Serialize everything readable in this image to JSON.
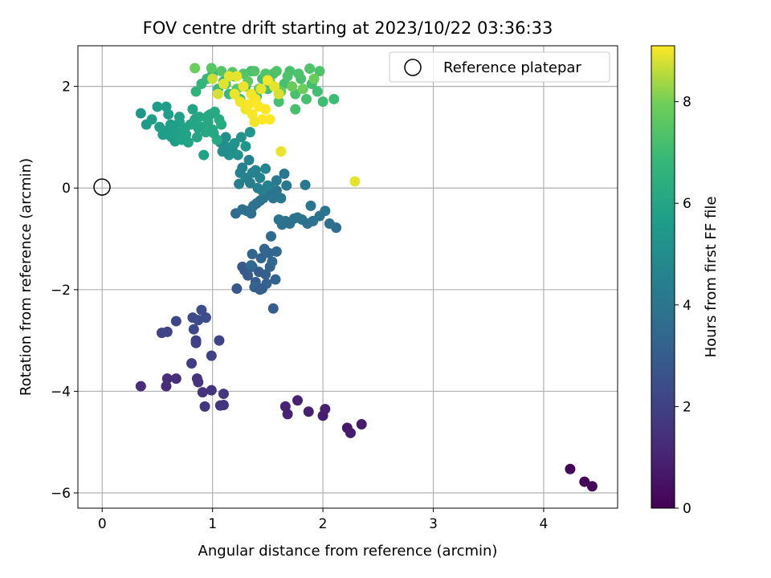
{
  "chart_data": {
    "type": "scatter",
    "title": "FOV centre drift starting at 2023/10/22 03:36:33",
    "xlabel": "Angular distance from reference (arcmin)",
    "ylabel": "Rotation from reference (arcmin)",
    "xlim": [
      -0.22,
      4.67
    ],
    "ylim": [
      -6.3,
      2.8
    ],
    "xticks": [
      0,
      1,
      2,
      3,
      4
    ],
    "yticks": [
      2,
      0,
      -2,
      -4,
      -6
    ],
    "grid": true,
    "legend": {
      "position": "top-right",
      "label": "Reference platepar"
    },
    "reference_point": {
      "x": 0,
      "y": 0
    },
    "colorbar": {
      "label": "Hours from first FF file",
      "range": [
        0,
        9.1
      ],
      "ticks": [
        0,
        2,
        4,
        6,
        8
      ],
      "colormap": "viridis"
    },
    "points": [
      [
        4.24,
        -5.53,
        0.1
      ],
      [
        4.37,
        -5.78,
        0.15
      ],
      [
        4.44,
        -5.87,
        0.2
      ],
      [
        2.22,
        -4.72,
        0.7
      ],
      [
        2.25,
        -4.82,
        0.75
      ],
      [
        2.35,
        -4.65,
        0.8
      ],
      [
        2.0,
        -4.48,
        0.85
      ],
      [
        2.02,
        -4.35,
        0.9
      ],
      [
        1.87,
        -4.4,
        0.9
      ],
      [
        1.77,
        -4.18,
        0.95
      ],
      [
        1.66,
        -4.3,
        1.0
      ],
      [
        1.68,
        -4.45,
        1.0
      ],
      [
        0.35,
        -3.9,
        1.3
      ],
      [
        0.58,
        -3.9,
        1.35
      ],
      [
        0.59,
        -3.75,
        1.35
      ],
      [
        0.67,
        -3.75,
        1.4
      ],
      [
        0.86,
        -3.75,
        1.45
      ],
      [
        0.87,
        -3.82,
        1.5
      ],
      [
        0.91,
        -4.02,
        1.5
      ],
      [
        0.93,
        -4.3,
        1.55
      ],
      [
        0.99,
        -3.98,
        1.55
      ],
      [
        1.07,
        -4.28,
        1.6
      ],
      [
        1.1,
        -4.27,
        1.6
      ],
      [
        1.1,
        -4.05,
        1.65
      ],
      [
        0.81,
        -3.45,
        1.9
      ],
      [
        0.85,
        -3.0,
        2.0
      ],
      [
        0.85,
        -3.05,
        2.0
      ],
      [
        0.99,
        -3.3,
        2.05
      ],
      [
        1.06,
        -3.0,
        2.1
      ],
      [
        0.54,
        -2.85,
        2.1
      ],
      [
        0.59,
        -2.83,
        2.15
      ],
      [
        0.67,
        -2.62,
        2.2
      ],
      [
        0.83,
        -2.78,
        2.25
      ],
      [
        0.82,
        -2.55,
        2.3
      ],
      [
        0.87,
        -2.6,
        2.35
      ],
      [
        0.9,
        -2.4,
        2.4
      ],
      [
        0.94,
        -2.55,
        2.4
      ],
      [
        1.22,
        -1.98,
        2.8
      ],
      [
        1.27,
        -1.55,
        2.85
      ],
      [
        1.29,
        -1.62,
        2.9
      ],
      [
        1.32,
        -1.72,
        2.95
      ],
      [
        1.36,
        -1.55,
        3.0
      ],
      [
        1.39,
        -1.85,
        3.0
      ],
      [
        1.42,
        -1.65,
        3.05
      ],
      [
        1.45,
        -1.98,
        3.1
      ],
      [
        1.48,
        -1.7,
        3.1
      ],
      [
        1.49,
        -1.88,
        3.15
      ],
      [
        1.52,
        -1.55,
        3.2
      ],
      [
        1.57,
        -1.8,
        3.2
      ],
      [
        1.55,
        -2.37,
        3.0
      ],
      [
        1.36,
        -1.3,
        3.25
      ],
      [
        1.38,
        -1.95,
        3.25
      ],
      [
        1.44,
        -1.38,
        3.3
      ],
      [
        1.47,
        -1.2,
        3.35
      ],
      [
        1.51,
        -1.28,
        3.35
      ],
      [
        1.54,
        -1.45,
        3.4
      ],
      [
        1.58,
        -1.25,
        3.4
      ],
      [
        1.35,
        -1.52,
        3.45
      ],
      [
        1.53,
        -0.95,
        3.5
      ],
      [
        1.43,
        -2.0,
        3.05
      ],
      [
        1.21,
        -0.5,
        3.6
      ],
      [
        1.27,
        -0.42,
        3.7
      ],
      [
        1.31,
        -0.45,
        3.7
      ],
      [
        1.35,
        -0.5,
        3.75
      ],
      [
        1.37,
        -0.35,
        3.8
      ],
      [
        1.4,
        -0.3,
        3.8
      ],
      [
        1.43,
        -0.25,
        3.85
      ],
      [
        1.46,
        -0.2,
        3.9
      ],
      [
        1.5,
        -0.1,
        3.9
      ],
      [
        1.52,
        0.0,
        3.95
      ],
      [
        1.55,
        -0.2,
        4.0
      ],
      [
        1.58,
        -0.05,
        4.0
      ],
      [
        1.6,
        -0.62,
        3.9
      ],
      [
        1.63,
        -0.72,
        3.85
      ],
      [
        1.66,
        -0.65,
        3.9
      ],
      [
        1.7,
        -0.7,
        3.8
      ],
      [
        1.74,
        -0.6,
        3.85
      ],
      [
        1.77,
        -0.58,
        3.9
      ],
      [
        1.81,
        -0.62,
        3.95
      ],
      [
        1.86,
        -0.7,
        3.8
      ],
      [
        1.91,
        -0.65,
        3.85
      ],
      [
        1.97,
        -0.55,
        3.9
      ],
      [
        2.02,
        -0.45,
        3.95
      ],
      [
        2.06,
        -0.7,
        3.75
      ],
      [
        2.12,
        -0.78,
        3.7
      ],
      [
        1.89,
        -0.35,
        4.0
      ],
      [
        1.84,
        0.06,
        4.1
      ],
      [
        1.65,
        0.28,
        4.1
      ],
      [
        1.62,
        -0.2,
        4.05
      ],
      [
        1.67,
        0.05,
        4.15
      ],
      [
        1.58,
        0.15,
        4.2
      ],
      [
        1.24,
        0.08,
        4.4
      ],
      [
        1.25,
        0.3,
        4.45
      ],
      [
        1.27,
        0.4,
        4.5
      ],
      [
        1.3,
        0.2,
        4.5
      ],
      [
        1.33,
        0.55,
        4.55
      ],
      [
        1.36,
        0.3,
        4.55
      ],
      [
        1.39,
        0.35,
        4.6
      ],
      [
        1.43,
        0.2,
        4.6
      ],
      [
        1.48,
        0.38,
        4.65
      ],
      [
        1.5,
        0.05,
        4.45
      ],
      [
        1.34,
        0.1,
        4.4
      ],
      [
        1.41,
        0.0,
        4.5
      ],
      [
        1.45,
        -0.05,
        4.4
      ],
      [
        1.07,
        0.9,
        5.0
      ],
      [
        1.1,
        0.85,
        5.0
      ],
      [
        1.12,
        1.0,
        5.05
      ],
      [
        1.15,
        0.8,
        5.1
      ],
      [
        1.18,
        0.75,
        5.15
      ],
      [
        1.2,
        0.88,
        5.2
      ],
      [
        1.23,
        0.65,
        5.2
      ],
      [
        1.26,
        1.0,
        5.25
      ],
      [
        1.3,
        0.82,
        5.3
      ],
      [
        1.34,
        1.1,
        5.3
      ],
      [
        1.15,
        0.65,
        5.1
      ],
      [
        1.09,
        0.72,
        5.0
      ],
      [
        0.35,
        1.47,
        5.5
      ],
      [
        0.4,
        1.25,
        5.55
      ],
      [
        0.45,
        1.35,
        5.6
      ],
      [
        0.5,
        1.6,
        5.65
      ],
      [
        0.52,
        1.2,
        5.6
      ],
      [
        0.55,
        1.05,
        5.65
      ],
      [
        0.57,
        1.12,
        5.7
      ],
      [
        0.6,
        1.45,
        5.7
      ],
      [
        0.62,
        1.25,
        5.75
      ],
      [
        0.63,
        1.0,
        5.7
      ],
      [
        0.66,
        0.92,
        5.75
      ],
      [
        0.68,
        1.1,
        5.8
      ],
      [
        0.7,
        1.3,
        5.8
      ],
      [
        0.72,
        0.95,
        5.85
      ],
      [
        0.74,
        1.15,
        5.85
      ],
      [
        0.76,
        1.05,
        5.9
      ],
      [
        0.78,
        0.9,
        5.9
      ],
      [
        0.8,
        1.25,
        5.95
      ],
      [
        0.82,
        1.55,
        5.95
      ],
      [
        0.84,
        1.35,
        6.0
      ],
      [
        0.86,
        1.0,
        6.0
      ],
      [
        0.88,
        1.4,
        6.05
      ],
      [
        0.9,
        1.2,
        6.05
      ],
      [
        0.92,
        0.65,
        5.9
      ],
      [
        0.94,
        1.1,
        6.1
      ],
      [
        0.96,
        1.3,
        6.1
      ],
      [
        0.98,
        1.45,
        6.15
      ],
      [
        1.0,
        1.15,
        6.15
      ],
      [
        1.02,
        1.5,
        6.2
      ],
      [
        1.04,
        0.95,
        6.2
      ],
      [
        1.06,
        1.35,
        6.25
      ],
      [
        1.08,
        1.25,
        6.25
      ],
      [
        0.58,
        1.6,
        5.65
      ],
      [
        0.64,
        1.22,
        5.75
      ],
      [
        0.66,
        1.08,
        5.8
      ],
      [
        0.75,
        1.18,
        5.85
      ],
      [
        0.87,
        1.18,
        6.0
      ],
      [
        0.96,
        1.42,
        6.1
      ],
      [
        1.01,
        1.08,
        6.15
      ],
      [
        0.7,
        1.4,
        5.8
      ],
      [
        0.6,
        1.05,
        5.7
      ],
      [
        0.85,
        1.9,
        6.6
      ],
      [
        0.9,
        2.05,
        6.7
      ],
      [
        0.95,
        2.15,
        6.75
      ],
      [
        1.0,
        2.25,
        6.8
      ],
      [
        1.05,
        1.95,
        6.85
      ],
      [
        1.1,
        2.1,
        6.85
      ],
      [
        1.15,
        1.85,
        6.9
      ],
      [
        1.2,
        2.2,
        6.95
      ],
      [
        1.25,
        1.75,
        7.0
      ],
      [
        1.3,
        2.0,
        7.0
      ],
      [
        1.35,
        2.3,
        7.05
      ],
      [
        1.4,
        1.8,
        7.05
      ],
      [
        1.45,
        2.15,
        7.1
      ],
      [
        1.5,
        1.95,
        7.1
      ],
      [
        1.55,
        2.25,
        7.15
      ],
      [
        1.6,
        1.7,
        7.15
      ],
      [
        1.65,
        2.05,
        7.2
      ],
      [
        1.7,
        2.3,
        7.2
      ],
      [
        1.75,
        1.85,
        7.25
      ],
      [
        1.8,
        2.15,
        7.25
      ],
      [
        1.85,
        1.75,
        7.2
      ],
      [
        1.9,
        2.05,
        7.15
      ],
      [
        1.95,
        1.9,
        7.1
      ],
      [
        2.0,
        1.7,
        7.05
      ],
      [
        2.1,
        1.75,
        7.0
      ],
      [
        1.97,
        2.3,
        7.3
      ],
      [
        1.88,
        2.35,
        7.35
      ],
      [
        1.78,
        2.25,
        7.3
      ],
      [
        1.68,
        2.2,
        7.3
      ],
      [
        1.58,
        2.3,
        7.35
      ],
      [
        1.48,
        2.25,
        7.4
      ],
      [
        1.38,
        2.3,
        7.4
      ],
      [
        1.28,
        2.25,
        7.45
      ],
      [
        1.18,
        2.28,
        7.5
      ],
      [
        1.08,
        2.3,
        7.5
      ],
      [
        0.99,
        2.36,
        7.55
      ],
      [
        0.84,
        2.36,
        7.9
      ],
      [
        1.12,
        2.05,
        7.5
      ],
      [
        1.22,
        1.95,
        7.6
      ],
      [
        1.32,
        2.1,
        7.6
      ],
      [
        1.42,
        1.95,
        7.7
      ],
      [
        1.52,
        2.1,
        7.75
      ],
      [
        1.62,
        1.9,
        7.8
      ],
      [
        1.72,
        2.0,
        7.85
      ],
      [
        1.82,
        1.95,
        7.9
      ],
      [
        1.92,
        2.15,
        7.85
      ],
      [
        1.75,
        1.55,
        7.2
      ],
      [
        1.6,
        1.85,
        7.8
      ],
      [
        1.0,
        2.15,
        8.7
      ],
      [
        1.05,
        1.85,
        8.8
      ],
      [
        1.1,
        2.05,
        8.85
      ],
      [
        1.15,
        2.2,
        8.9
      ],
      [
        1.2,
        1.85,
        8.95
      ],
      [
        1.25,
        1.7,
        9.0
      ],
      [
        1.3,
        1.55,
        9.0
      ],
      [
        1.33,
        1.65,
        9.05
      ],
      [
        1.36,
        1.45,
        9.05
      ],
      [
        1.39,
        1.75,
        9.05
      ],
      [
        1.42,
        1.6,
        9.1
      ],
      [
        1.45,
        1.35,
        9.1
      ],
      [
        1.48,
        1.55,
        9.1
      ],
      [
        1.52,
        1.35,
        9.1
      ],
      [
        1.35,
        1.85,
        9.0
      ],
      [
        1.28,
        2.0,
        8.95
      ],
      [
        1.22,
        2.2,
        8.9
      ],
      [
        1.44,
        1.95,
        8.9
      ],
      [
        1.56,
        2.0,
        8.9
      ],
      [
        1.6,
        1.85,
        8.8
      ],
      [
        1.5,
        2.12,
        9.05
      ],
      [
        1.62,
        0.72,
        8.95
      ],
      [
        2.29,
        0.13,
        8.9
      ],
      [
        1.38,
        1.3,
        9.0
      ]
    ]
  }
}
